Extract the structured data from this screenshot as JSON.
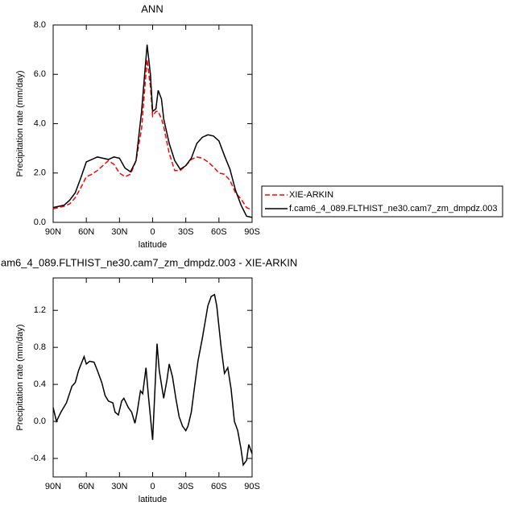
{
  "chart_data": [
    {
      "type": "line",
      "title": "ANN",
      "xlabel": "latitude",
      "ylabel": "Precipitation rate (mm/day)",
      "x": [
        90,
        85,
        80,
        75,
        70,
        65,
        60,
        55,
        50,
        45,
        40,
        35,
        30,
        25,
        20,
        15,
        10,
        5,
        2,
        0,
        -3,
        -5,
        -8,
        -10,
        -15,
        -20,
        -25,
        -30,
        -35,
        -40,
        -45,
        -50,
        -55,
        -60,
        -65,
        -70,
        -75,
        -80,
        -85,
        -90
      ],
      "xlim": [
        90,
        -90
      ],
      "xticks": [
        {
          "value": 90,
          "label": "90N"
        },
        {
          "value": 60,
          "label": "60N"
        },
        {
          "value": 30,
          "label": "30N"
        },
        0,
        {
          "value": -30,
          "label": "30S"
        },
        {
          "value": -60,
          "label": "60S"
        },
        {
          "value": -90,
          "label": "90S"
        }
      ],
      "ylim": [
        0,
        8
      ],
      "yticks": [
        {
          "value": 0,
          "label": "0.0"
        },
        {
          "value": 2,
          "label": "2.0"
        },
        {
          "value": 4,
          "label": "4.0"
        },
        {
          "value": 6,
          "label": "6.0"
        },
        {
          "value": 8,
          "label": "8.0"
        }
      ],
      "legend": "right",
      "series": [
        {
          "name": "XIE-ARKIN",
          "color": "#ff0000",
          "dash": "dashed",
          "values": [
            0.55,
            0.6,
            0.65,
            0.75,
            1.0,
            1.4,
            1.85,
            1.95,
            2.1,
            2.3,
            2.5,
            2.35,
            2.0,
            1.85,
            1.95,
            2.5,
            3.8,
            6.6,
            5.5,
            4.3,
            4.5,
            4.5,
            4.2,
            3.9,
            2.8,
            2.1,
            2.1,
            2.3,
            2.55,
            2.65,
            2.6,
            2.45,
            2.25,
            2.0,
            1.95,
            1.7,
            1.2,
            0.95,
            0.6,
            0.5
          ]
        },
        {
          "name": "f.cam6_4_089.FLTHIST_ne30.cam7_zm_dmpdz.003",
          "color": "#000000",
          "dash": "solid",
          "values": [
            0.6,
            0.65,
            0.7,
            0.9,
            1.2,
            1.8,
            2.45,
            2.55,
            2.65,
            2.6,
            2.55,
            2.65,
            2.6,
            2.2,
            2.05,
            2.5,
            4.5,
            7.2,
            6.0,
            4.5,
            4.6,
            5.35,
            5.0,
            4.2,
            3.2,
            2.5,
            2.15,
            2.3,
            2.6,
            3.2,
            3.45,
            3.55,
            3.5,
            3.3,
            2.7,
            2.15,
            1.3,
            0.7,
            0.25,
            0.2
          ]
        }
      ]
    },
    {
      "type": "line",
      "title": "am6_4_089.FLTHIST_ne30.cam7_zm_dmpdz.003 - XIE-ARKIN",
      "xlabel": "latitude",
      "ylabel": "Precipitation rate (mm/day)",
      "x": [
        90,
        87,
        83,
        78,
        73,
        70,
        67,
        62,
        60,
        57,
        53,
        50,
        46,
        43,
        40,
        36,
        34,
        31,
        28,
        26,
        22,
        19,
        16,
        14,
        11,
        9,
        6,
        4,
        0,
        -4,
        -6,
        -10,
        -13,
        -15,
        -18,
        -21,
        -24,
        -27,
        -30,
        -32,
        -35,
        -38,
        -41,
        -45,
        -50,
        -53,
        -56,
        -58,
        -62,
        -65,
        -68,
        -71,
        -74,
        -77,
        -80,
        -82,
        -85,
        -87,
        -90
      ],
      "values": [
        0.15,
        0.0,
        0.1,
        0.2,
        0.38,
        0.42,
        0.55,
        0.7,
        0.62,
        0.65,
        0.64,
        0.55,
        0.42,
        0.28,
        0.22,
        0.2,
        0.1,
        0.07,
        0.22,
        0.25,
        0.15,
        0.1,
        -0.02,
        0.1,
        0.33,
        0.3,
        0.58,
        0.3,
        -0.2,
        0.84,
        0.55,
        0.25,
        0.45,
        0.62,
        0.48,
        0.25,
        0.05,
        -0.05,
        -0.1,
        -0.05,
        0.1,
        0.38,
        0.65,
        0.9,
        1.25,
        1.35,
        1.37,
        1.25,
        0.8,
        0.52,
        0.58,
        0.35,
        0.0,
        -0.1,
        -0.3,
        -0.47,
        -0.42,
        -0.25,
        -0.35
      ],
      "color": "#000000",
      "xlim": [
        90,
        -90
      ],
      "xticks": [
        {
          "value": 90,
          "label": "90N"
        },
        {
          "value": 60,
          "label": "60N"
        },
        {
          "value": 30,
          "label": "30N"
        },
        0,
        {
          "value": -30,
          "label": "30S"
        },
        {
          "value": -60,
          "label": "60S"
        },
        {
          "value": -90,
          "label": "90S"
        }
      ],
      "ylim": [
        -0.6,
        1.55
      ],
      "yticks": [
        -0.4,
        {
          "value": 0,
          "label": "0.0"
        },
        0.4,
        0.8,
        1.2
      ]
    }
  ]
}
